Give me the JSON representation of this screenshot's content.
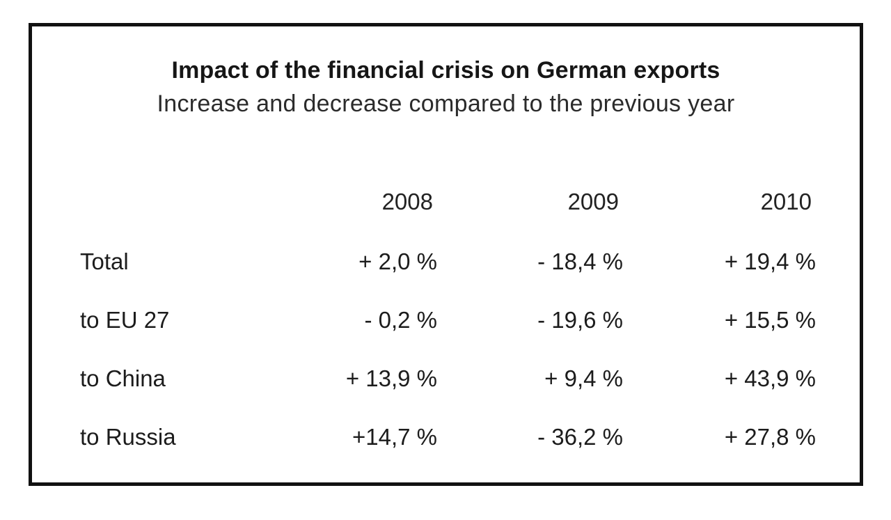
{
  "figure": {
    "title": "Impact of the financial crisis on German exports",
    "subtitle": "Increase and decrease compared to the previous year"
  },
  "table": {
    "corner": "",
    "year_headers": [
      "2008",
      "2009",
      "2010"
    ],
    "rows": [
      {
        "label": "Total",
        "values": [
          "+ 2,0 %",
          "- 18,4 %",
          "+ 19,4 %"
        ]
      },
      {
        "label": "to EU 27",
        "values": [
          "- 0,2 %",
          "- 19,6 %",
          "+ 15,5 %"
        ]
      },
      {
        "label": "to China",
        "values": [
          "+ 13,9 %",
          "+ 9,4 %",
          "+ 43,9 %"
        ]
      },
      {
        "label": "to Russia",
        "values": [
          "+14,7 %",
          "- 36,2 %",
          "+ 27,8 %"
        ]
      }
    ]
  },
  "chart_data": {
    "type": "table",
    "title": "Impact of the financial crisis on German exports",
    "subtitle": "Increase and decrease compared to the previous year",
    "columns": [
      "",
      "2008",
      "2009",
      "2010"
    ],
    "categories": [
      "Total",
      "to EU 27",
      "to China",
      "to Russia"
    ],
    "series": [
      {
        "name": "2008",
        "values": [
          2.0,
          -0.2,
          13.9,
          14.7
        ]
      },
      {
        "name": "2009",
        "values": [
          -18.4,
          -19.6,
          9.4,
          -36.2
        ]
      },
      {
        "name": "2010",
        "values": [
          19.4,
          15.5,
          43.9,
          27.8
        ]
      }
    ],
    "unit": "percent change vs previous year",
    "legend_position": "none",
    "grid": false
  },
  "colors": {
    "background": "#ffffff",
    "border": "#111111",
    "text": "#1c1c1c"
  }
}
